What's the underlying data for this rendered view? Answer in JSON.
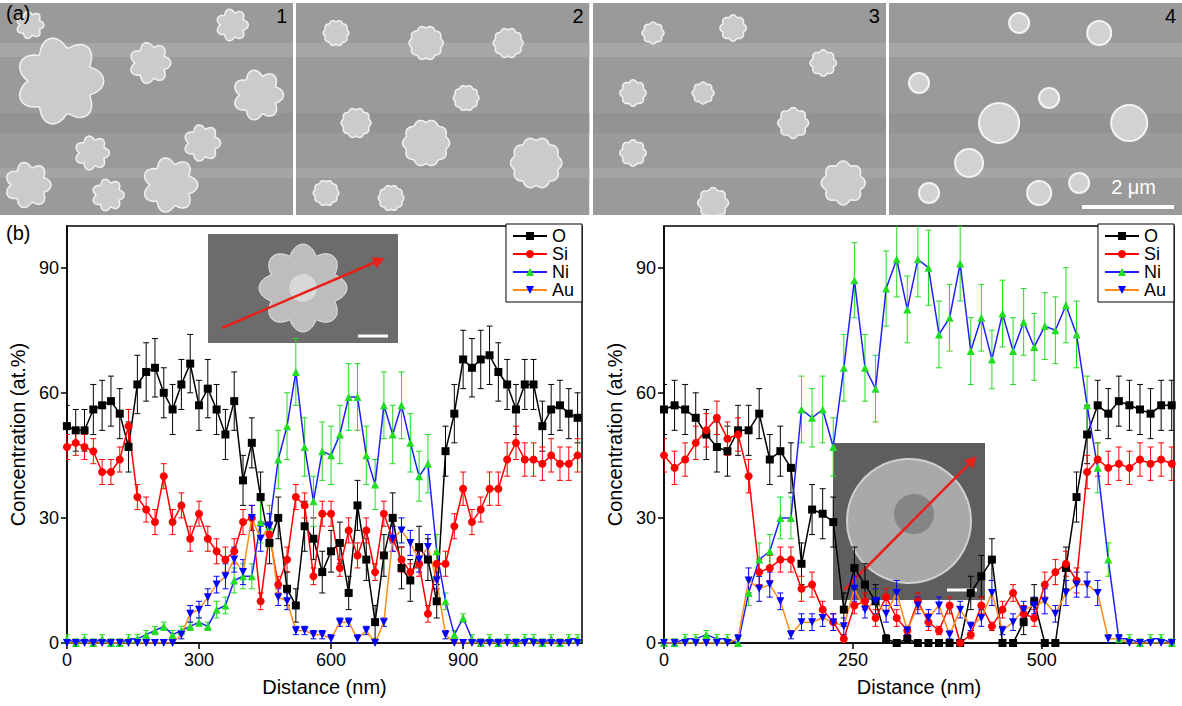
{
  "panel_a": {
    "label": "(a)",
    "images": [
      "1",
      "2",
      "3",
      "4"
    ],
    "scale_bar": "2 μm"
  },
  "panel_b": {
    "label": "(b)"
  },
  "chart_data": [
    {
      "type": "line",
      "x_label": "Distance (nm)",
      "y_label": "Concentration (at.%)",
      "xlim": [
        0,
        1170
      ],
      "xticks": [
        0,
        300,
        600,
        900
      ],
      "ylim": [
        0,
        100
      ],
      "yticks": [
        0,
        30,
        60,
        90
      ],
      "grid": false,
      "legend": "top right",
      "x": [
        0,
        20,
        40,
        60,
        80,
        100,
        120,
        140,
        160,
        180,
        200,
        220,
        240,
        260,
        280,
        300,
        320,
        340,
        360,
        380,
        400,
        420,
        440,
        460,
        480,
        500,
        520,
        540,
        560,
        580,
        600,
        620,
        640,
        660,
        680,
        700,
        720,
        740,
        760,
        780,
        800,
        820,
        840,
        860,
        880,
        900,
        920,
        940,
        960,
        980,
        1000,
        1020,
        1040,
        1060,
        1080,
        1100,
        1120,
        1140,
        1160
      ],
      "series": [
        {
          "name": "O",
          "color": "#000000",
          "marker": "square",
          "values": [
            52,
            51,
            51,
            56,
            57,
            58,
            55,
            47,
            62,
            65,
            66,
            60,
            56,
            62,
            67,
            57,
            61,
            56,
            50,
            58,
            39,
            48,
            35,
            24,
            30,
            13,
            9,
            28,
            25,
            17,
            22,
            24,
            12,
            33,
            20,
            5,
            21,
            30,
            18,
            15,
            23,
            20,
            10,
            46,
            55,
            68,
            66,
            68,
            69,
            65,
            62,
            56,
            62,
            62,
            52,
            56,
            57,
            55,
            54
          ],
          "errors": [
            5,
            5,
            5,
            6,
            6,
            6,
            6,
            6,
            7,
            7,
            7,
            6,
            6,
            6,
            7,
            6,
            7,
            6,
            6,
            7,
            6,
            6,
            6,
            5,
            5,
            4,
            4,
            6,
            5,
            5,
            5,
            5,
            4,
            6,
            5,
            4,
            5,
            6,
            5,
            5,
            5,
            5,
            4,
            6,
            7,
            7,
            7,
            7,
            7,
            7,
            6,
            6,
            6,
            6,
            6,
            6,
            6,
            6,
            6
          ]
        },
        {
          "name": "Si",
          "color": "#ff0000",
          "marker": "circle",
          "values": [
            47,
            48,
            47,
            46,
            41,
            41,
            44,
            52,
            35,
            32,
            29,
            40,
            29,
            33,
            25,
            31,
            25,
            22,
            20,
            22,
            29,
            30,
            10,
            26,
            14,
            20,
            35,
            33,
            16,
            31,
            31,
            18,
            27,
            21,
            27,
            17,
            31,
            25,
            20,
            17,
            19,
            7,
            19,
            19,
            28,
            37,
            29,
            32,
            37,
            37,
            44,
            48,
            44,
            44,
            43,
            45,
            43,
            43,
            45
          ],
          "errors": [
            3,
            3,
            3,
            3,
            3,
            3,
            3,
            4,
            3,
            3,
            3,
            3,
            3,
            3,
            3,
            3,
            3,
            3,
            3,
            3,
            3,
            3,
            2,
            3,
            2,
            3,
            3,
            3,
            2,
            3,
            3,
            2,
            3,
            3,
            3,
            2,
            3,
            3,
            3,
            2,
            3,
            2,
            3,
            3,
            3,
            4,
            3,
            3,
            4,
            4,
            4,
            4,
            4,
            4,
            4,
            4,
            4,
            4,
            4
          ]
        },
        {
          "name": "Ni",
          "color": "#22dd22",
          "marker": "triangle",
          "values": [
            1,
            0,
            1,
            0,
            1,
            0,
            0,
            1,
            1,
            2,
            3,
            4,
            2,
            3,
            4,
            5,
            4,
            8,
            9,
            15,
            16,
            16,
            29,
            28,
            44,
            52,
            65,
            47,
            34,
            46,
            45,
            50,
            59,
            59,
            45,
            38,
            57,
            50,
            57,
            48,
            40,
            43,
            22,
            10,
            2,
            6,
            1,
            0,
            1,
            0,
            1,
            0,
            1,
            1,
            0,
            1,
            0,
            1,
            1
          ],
          "errors": [
            1,
            1,
            1,
            1,
            1,
            1,
            1,
            1,
            1,
            1,
            1,
            1,
            1,
            1,
            1,
            1,
            1,
            2,
            2,
            3,
            3,
            3,
            5,
            5,
            7,
            8,
            8,
            7,
            6,
            7,
            7,
            7,
            8,
            8,
            7,
            6,
            8,
            7,
            8,
            7,
            6,
            7,
            4,
            2,
            1,
            1,
            1,
            1,
            1,
            1,
            1,
            1,
            1,
            1,
            1,
            1,
            1,
            1,
            1
          ]
        },
        {
          "name": "Au",
          "color": "#0000ff",
          "marker": "triangle-down",
          "values": [
            0,
            0,
            0,
            0,
            0,
            0,
            0,
            0,
            0,
            0,
            0,
            0,
            0,
            2,
            7,
            8,
            11,
            14,
            16,
            20,
            17,
            30,
            25,
            28,
            11,
            10,
            3,
            3,
            2,
            2,
            1,
            5,
            5,
            1,
            3,
            0,
            5,
            25,
            27,
            24,
            20,
            23,
            15,
            2,
            0,
            0,
            0,
            0,
            0,
            0,
            0,
            0,
            0,
            0,
            0,
            0,
            0,
            0,
            0
          ],
          "errors": [
            0,
            0,
            0,
            0,
            0,
            0,
            0,
            0,
            0,
            0,
            0,
            0,
            0,
            1,
            2,
            2,
            2,
            2,
            3,
            3,
            3,
            3,
            3,
            3,
            2,
            2,
            1,
            1,
            1,
            1,
            1,
            1,
            1,
            1,
            1,
            0,
            1,
            3,
            3,
            3,
            3,
            3,
            2,
            1,
            0,
            0,
            0,
            0,
            0,
            0,
            0,
            0,
            0,
            0,
            0,
            0,
            0,
            0,
            0
          ]
        }
      ]
    },
    {
      "type": "line",
      "x_label": "Distance (nm)",
      "y_label": "Concentration (at.%)",
      "xlim": [
        0,
        675
      ],
      "xticks": [
        0,
        250,
        500
      ],
      "ylim": [
        0,
        100
      ],
      "yticks": [
        0,
        30,
        60,
        90
      ],
      "grid": false,
      "legend": "top right",
      "x": [
        0,
        14,
        28,
        42,
        56,
        70,
        84,
        98,
        112,
        126,
        140,
        154,
        168,
        182,
        196,
        210,
        224,
        238,
        252,
        266,
        280,
        294,
        308,
        322,
        336,
        350,
        364,
        378,
        392,
        406,
        420,
        434,
        448,
        462,
        476,
        490,
        504,
        518,
        532,
        546,
        560,
        574,
        588,
        602,
        616,
        630,
        644,
        658,
        672
      ],
      "series": [
        {
          "name": "O",
          "color": "#000000",
          "marker": "square",
          "values": [
            56,
            57,
            56,
            54,
            50,
            47,
            46,
            51,
            51,
            55,
            44,
            46,
            42,
            19,
            32,
            31,
            29,
            8,
            18,
            14,
            10,
            1,
            0,
            1,
            0,
            0,
            0,
            0,
            0,
            12,
            16,
            20,
            0,
            0,
            5,
            10,
            0,
            0,
            18,
            35,
            50,
            57,
            55,
            58,
            57,
            56,
            55,
            57,
            57
          ],
          "errors": [
            6,
            6,
            6,
            6,
            6,
            6,
            6,
            6,
            6,
            6,
            6,
            6,
            6,
            5,
            6,
            6,
            6,
            4,
            5,
            5,
            4,
            1,
            0,
            1,
            0,
            0,
            0,
            0,
            0,
            4,
            5,
            5,
            0,
            0,
            3,
            4,
            0,
            0,
            5,
            6,
            7,
            6,
            6,
            6,
            6,
            6,
            6,
            6,
            6
          ]
        },
        {
          "name": "Si",
          "color": "#ff0000",
          "marker": "circle",
          "values": [
            45,
            42,
            44,
            48,
            51,
            54,
            49,
            50,
            40,
            17,
            18,
            20,
            20,
            13,
            14,
            8,
            5,
            1,
            9,
            10,
            6,
            11,
            6,
            3,
            10,
            5,
            3,
            9,
            0,
            2,
            9,
            4,
            8,
            12,
            7,
            6,
            14,
            17,
            19,
            15,
            41,
            44,
            42,
            43,
            42,
            44,
            43,
            44,
            43
          ],
          "errors": [
            4,
            4,
            4,
            4,
            4,
            4,
            4,
            4,
            4,
            3,
            3,
            3,
            3,
            3,
            3,
            2,
            2,
            1,
            2,
            2,
            2,
            2,
            2,
            1,
            2,
            2,
            1,
            2,
            0,
            1,
            2,
            1,
            2,
            2,
            2,
            2,
            3,
            3,
            3,
            3,
            4,
            4,
            4,
            4,
            4,
            4,
            4,
            4,
            4
          ]
        },
        {
          "name": "Ni",
          "color": "#22dd22",
          "marker": "triangle",
          "values": [
            0,
            0,
            1,
            1,
            2,
            1,
            1,
            0,
            12,
            20,
            22,
            30,
            30,
            56,
            54,
            56,
            47,
            66,
            87,
            66,
            61,
            85,
            92,
            80,
            92,
            90,
            74,
            78,
            91,
            70,
            78,
            68,
            79,
            70,
            77,
            71,
            76,
            75,
            81,
            74,
            57,
            42,
            20,
            1,
            1,
            0,
            1,
            1,
            0
          ],
          "errors": [
            1,
            1,
            1,
            1,
            1,
            1,
            1,
            1,
            3,
            4,
            4,
            5,
            5,
            8,
            7,
            8,
            7,
            8,
            9,
            8,
            8,
            9,
            9,
            8,
            9,
            9,
            8,
            8,
            9,
            8,
            8,
            7,
            8,
            8,
            8,
            8,
            8,
            8,
            9,
            8,
            7,
            6,
            4,
            1,
            1,
            1,
            1,
            1,
            1
          ]
        },
        {
          "name": "Au",
          "color": "#0000ff",
          "marker": "triangle-down",
          "values": [
            0,
            0,
            0,
            0,
            0,
            0,
            0,
            1,
            15,
            13,
            14,
            10,
            2,
            5,
            5,
            6,
            5,
            4,
            13,
            8,
            10,
            7,
            12,
            3,
            9,
            6,
            9,
            2,
            8,
            4,
            6,
            12,
            3,
            5,
            8,
            9,
            10,
            7,
            12,
            14,
            14,
            12,
            1,
            1,
            0,
            0,
            0,
            0,
            0
          ],
          "errors": [
            0,
            0,
            0,
            0,
            0,
            0,
            0,
            1,
            3,
            3,
            3,
            2,
            1,
            2,
            2,
            2,
            2,
            2,
            3,
            2,
            3,
            2,
            3,
            1,
            2,
            2,
            2,
            1,
            2,
            1,
            2,
            3,
            1,
            2,
            2,
            2,
            3,
            2,
            3,
            3,
            3,
            3,
            1,
            1,
            0,
            0,
            0,
            0,
            0
          ]
        }
      ]
    }
  ]
}
